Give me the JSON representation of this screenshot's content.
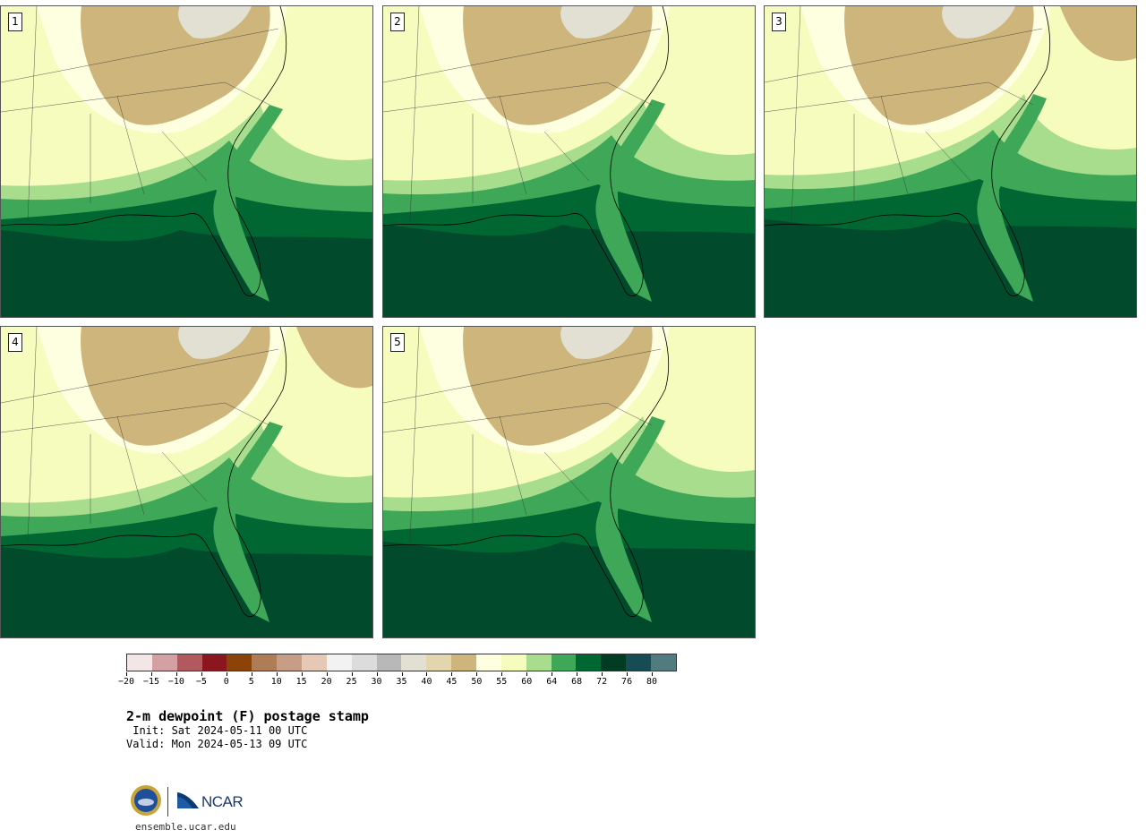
{
  "panels": [
    {
      "label": "1"
    },
    {
      "label": "2"
    },
    {
      "label": "3"
    },
    {
      "label": "4"
    },
    {
      "label": "5"
    }
  ],
  "colorbar": {
    "colors": [
      "#f3e6e6",
      "#d3a0a3",
      "#b1595f",
      "#8c1620",
      "#8b4307",
      "#ae7c56",
      "#c89d85",
      "#e5c8b6",
      "#f2f2f2",
      "#dcdcdc",
      "#b8b8b8",
      "#e1e0d2",
      "#e3d5ad",
      "#cdb57b",
      "#fefee0",
      "#f6fbbe",
      "#a7dd8c",
      "#3fa858",
      "#006632",
      "#013b23",
      "#184c55",
      "#527b80"
    ],
    "tick_labels": [
      "−20",
      "−15",
      "−10",
      "−5",
      "0",
      "5",
      "10",
      "15",
      "20",
      "25",
      "30",
      "35",
      "40",
      "45",
      "50",
      "55",
      "60",
      "64",
      "68",
      "72",
      "76",
      "80"
    ]
  },
  "title": "2-m dewpoint (F) postage stamp",
  "init": " Init: Sat 2024-05-11 00 UTC",
  "valid": "Valid: Mon 2024-05-13 09 UTC",
  "footer": {
    "logo_text": "NCAR",
    "seal_text": "NSF",
    "site": "ensemble.ucar.edu"
  }
}
